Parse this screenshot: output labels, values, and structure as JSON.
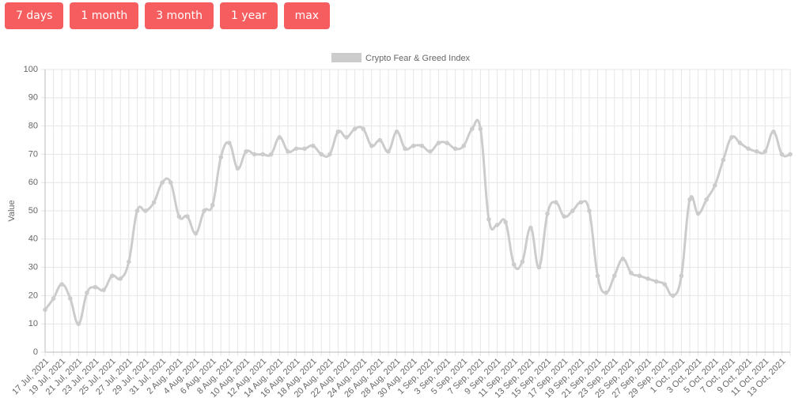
{
  "buttons": [
    "7 days",
    "1 month",
    "3 month",
    "1 year",
    "max"
  ],
  "chart_data": {
    "type": "line",
    "y_label": "Value",
    "categories": [
      "17 Jul, 2021",
      null,
      "19 Jul, 2021",
      null,
      "21 Jul, 2021",
      null,
      "23 Jul, 2021",
      null,
      "25 Jul, 2021",
      null,
      "27 Jul, 2021",
      null,
      "29 Jul, 2021",
      null,
      "31 Jul, 2021",
      null,
      "2 Aug, 2021",
      null,
      "4 Aug, 2021",
      null,
      "6 Aug, 2021",
      null,
      "8 Aug, 2021",
      null,
      "10 Aug, 2021",
      null,
      "12 Aug, 2021",
      null,
      "14 Aug, 2021",
      null,
      "16 Aug, 2021",
      null,
      "18 Aug, 2021",
      null,
      "20 Aug, 2021",
      null,
      "22 Aug, 2021",
      null,
      "24 Aug, 2021",
      null,
      "26 Aug, 2021",
      null,
      "28 Aug, 2021",
      null,
      "30 Aug, 2021",
      null,
      "1 Sep, 2021",
      null,
      "3 Sep, 2021",
      null,
      "5 Sep, 2021",
      null,
      "7 Sep, 2021",
      null,
      "9 Sep, 2021",
      null,
      "11 Sep, 2021",
      null,
      "13 Sep, 2021",
      null,
      "15 Sep, 2021",
      null,
      "17 Sep, 2021",
      null,
      "19 Sep, 2021",
      null,
      "21 Sep, 2021",
      null,
      "23 Sep, 2021",
      null,
      "25 Sep, 2021",
      null,
      "27 Sep, 2021",
      null,
      "29 Sep, 2021",
      null,
      "1 Oct, 2021",
      null,
      "3 Oct, 2021",
      null,
      "5 Oct, 2021",
      null,
      "7 Oct, 2021",
      null,
      "9 Oct, 2021",
      null,
      "11 Oct, 2021",
      null,
      "13 Oct, 2021",
      null
    ],
    "series": [
      {
        "name": "Crypto Fear & Greed Index",
        "color": "#cccccc",
        "values": [
          15,
          19,
          24,
          19,
          10,
          21,
          23,
          22,
          27,
          26,
          32,
          50,
          50,
          53,
          60,
          60,
          48,
          48,
          42,
          50,
          52,
          69,
          74,
          65,
          71,
          70,
          70,
          70,
          76,
          71,
          72,
          72,
          73,
          70,
          70,
          78,
          76,
          79,
          79,
          73,
          75,
          71,
          78,
          72,
          73,
          73,
          71,
          74,
          74,
          72,
          73,
          79,
          79,
          47,
          45,
          46,
          31,
          32,
          44,
          30,
          49,
          53,
          48,
          50,
          53,
          50,
          27,
          21,
          27,
          33,
          28,
          27,
          26,
          25,
          24,
          20,
          27,
          54,
          49,
          54,
          59,
          68,
          76,
          74,
          72,
          71,
          71,
          78,
          70,
          70
        ]
      }
    ],
    "ylim": [
      0,
      100
    ],
    "yticks": [
      0,
      10,
      20,
      30,
      40,
      50,
      60,
      70,
      80,
      90,
      100
    ],
    "grid": true
  }
}
